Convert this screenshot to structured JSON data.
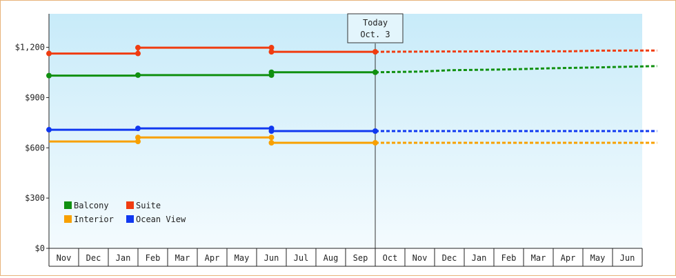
{
  "chart_data": {
    "type": "line",
    "title": "",
    "xlabel": "",
    "ylabel": "",
    "ylim": [
      0,
      1400
    ],
    "y_ticks": [
      0,
      300,
      600,
      900,
      1200
    ],
    "y_tick_labels": [
      "$0",
      "$300",
      "$600",
      "$900",
      "$1,200"
    ],
    "months": [
      "Nov",
      "Dec",
      "Jan",
      "Feb",
      "Mar",
      "Apr",
      "May",
      "Jun",
      "Jul",
      "Aug",
      "Sep",
      "Oct",
      "Nov",
      "Dec",
      "Jan",
      "Feb",
      "Mar",
      "Apr",
      "May",
      "Jun"
    ],
    "today": {
      "index": 11,
      "line1": "Today",
      "line2": "Oct. 3"
    },
    "grid": false,
    "legend": "bottom-left",
    "series": [
      {
        "name": "Balcony",
        "color": "#109010",
        "actual": [
          [
            0,
            1031
          ],
          [
            3,
            1031
          ],
          [
            3,
            1034
          ],
          [
            7.5,
            1034
          ],
          [
            7.5,
            1051
          ],
          [
            11,
            1051
          ]
        ],
        "markers": [
          [
            0,
            1031
          ],
          [
            3,
            1034
          ],
          [
            7.5,
            1034
          ],
          [
            7.5,
            1051
          ],
          [
            11,
            1051
          ]
        ],
        "forecast": [
          [
            11,
            1051
          ],
          [
            12.5,
            1055
          ],
          [
            13.5,
            1063
          ],
          [
            15.5,
            1068
          ],
          [
            17,
            1075
          ],
          [
            18.5,
            1080
          ],
          [
            19.5,
            1084
          ],
          [
            20.5,
            1088
          ]
        ]
      },
      {
        "name": "Suite",
        "color": "#f03c10",
        "actual": [
          [
            0,
            1163
          ],
          [
            3,
            1163
          ],
          [
            3,
            1198
          ],
          [
            7.5,
            1198
          ],
          [
            7.5,
            1173
          ],
          [
            11,
            1173
          ]
        ],
        "markers": [
          [
            0,
            1163
          ],
          [
            3,
            1163
          ],
          [
            3,
            1198
          ],
          [
            7.5,
            1198
          ],
          [
            7.5,
            1173
          ],
          [
            11,
            1173
          ]
        ],
        "forecast": [
          [
            11,
            1173
          ],
          [
            13.5,
            1175
          ],
          [
            17.5,
            1176
          ],
          [
            18.5,
            1180
          ],
          [
            20.5,
            1181
          ]
        ]
      },
      {
        "name": "Interior",
        "color": "#f8a000",
        "actual": [
          [
            0,
            638
          ],
          [
            3,
            638
          ],
          [
            3,
            662
          ],
          [
            7.5,
            662
          ],
          [
            7.5,
            630
          ],
          [
            11,
            630
          ]
        ],
        "markers": [
          [
            3,
            638
          ],
          [
            3,
            662
          ],
          [
            7.5,
            662
          ],
          [
            7.5,
            630
          ],
          [
            11,
            630
          ]
        ],
        "forecast": [
          [
            11,
            630
          ],
          [
            20.5,
            630
          ]
        ]
      },
      {
        "name": "Ocean View",
        "color": "#1038f0",
        "actual": [
          [
            0,
            708
          ],
          [
            3,
            708
          ],
          [
            3,
            716
          ],
          [
            7.5,
            716
          ],
          [
            7.5,
            700
          ],
          [
            11,
            700
          ]
        ],
        "markers": [
          [
            0,
            708
          ],
          [
            3,
            716
          ],
          [
            7.5,
            716
          ],
          [
            7.5,
            700
          ],
          [
            11,
            700
          ]
        ],
        "forecast": [
          [
            11,
            700
          ],
          [
            20.5,
            700
          ]
        ]
      }
    ],
    "legend_order": [
      "Balcony",
      "Suite",
      "Interior",
      "Ocean View"
    ]
  }
}
